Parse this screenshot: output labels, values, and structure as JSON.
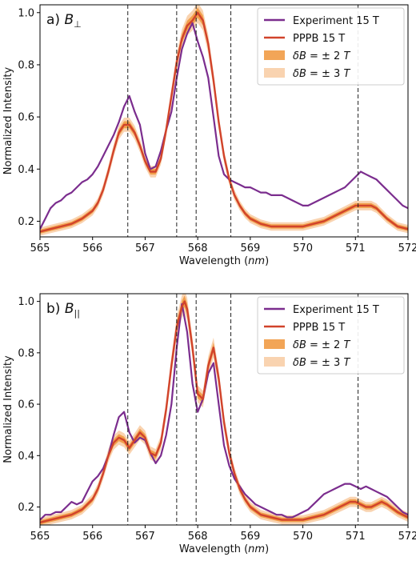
{
  "chart_data": [
    {
      "type": "line",
      "panel_label": "a)",
      "panel_symbol": "B",
      "panel_subscript": "⊥",
      "xlabel_main": "Wavelength (",
      "xlabel_unit": "nm",
      "xlabel_end": ")",
      "ylabel": "Normalized Intensity",
      "xlim": [
        565,
        572
      ],
      "ylim": [
        0.14,
        1.03
      ],
      "xticks": [
        "565",
        "566",
        "567",
        "568",
        "569",
        "570",
        "571",
        "572"
      ],
      "yticks": [
        "0.2",
        "0.4",
        "0.6",
        "0.8",
        "1.0"
      ],
      "vlines": [
        566.67,
        567.6,
        567.97,
        568.63,
        571.05
      ],
      "legend_position": "top-right",
      "legend": [
        {
          "label": "Experiment 15 T"
        },
        {
          "label": "PPPB 15 T"
        },
        {
          "label_main": "δB",
          "label_rest": " = ± 2 ",
          "label_unit": "T"
        },
        {
          "label_main": "δB",
          "label_rest": " = ± 3 ",
          "label_unit": "T"
        }
      ],
      "series": [
        {
          "name": "Experiment 15 T",
          "color": "#7b2d8e",
          "x": [
            565.0,
            565.1,
            565.2,
            565.3,
            565.4,
            565.5,
            565.6,
            565.7,
            565.8,
            565.9,
            566.0,
            566.1,
            566.2,
            566.3,
            566.4,
            566.5,
            566.6,
            566.7,
            566.8,
            566.9,
            567.0,
            567.1,
            567.2,
            567.3,
            567.4,
            567.5,
            567.6,
            567.7,
            567.8,
            567.9,
            568.0,
            568.1,
            568.2,
            568.3,
            568.4,
            568.5,
            568.6,
            568.7,
            568.8,
            568.9,
            569.0,
            569.1,
            569.2,
            569.3,
            569.4,
            569.5,
            569.6,
            569.7,
            569.8,
            569.9,
            570.0,
            570.1,
            570.2,
            570.3,
            570.4,
            570.5,
            570.6,
            570.7,
            570.8,
            570.9,
            571.0,
            571.1,
            571.2,
            571.3,
            571.4,
            571.5,
            571.6,
            571.7,
            571.8,
            571.9,
            572.0
          ],
          "y": [
            0.17,
            0.21,
            0.25,
            0.27,
            0.28,
            0.3,
            0.31,
            0.33,
            0.35,
            0.36,
            0.38,
            0.41,
            0.45,
            0.49,
            0.53,
            0.58,
            0.64,
            0.68,
            0.62,
            0.57,
            0.46,
            0.4,
            0.41,
            0.47,
            0.55,
            0.62,
            0.75,
            0.86,
            0.92,
            0.96,
            0.89,
            0.83,
            0.75,
            0.6,
            0.45,
            0.38,
            0.36,
            0.35,
            0.34,
            0.33,
            0.33,
            0.32,
            0.31,
            0.31,
            0.3,
            0.3,
            0.3,
            0.29,
            0.28,
            0.27,
            0.26,
            0.26,
            0.27,
            0.28,
            0.29,
            0.3,
            0.31,
            0.32,
            0.33,
            0.35,
            0.37,
            0.39,
            0.38,
            0.37,
            0.36,
            0.34,
            0.32,
            0.3,
            0.28,
            0.26,
            0.25
          ]
        },
        {
          "name": "PPPB 15 T",
          "color": "#d1432b",
          "x": [
            565.0,
            565.2,
            565.4,
            565.6,
            565.8,
            566.0,
            566.1,
            566.2,
            566.3,
            566.4,
            566.5,
            566.6,
            566.7,
            566.8,
            566.9,
            567.0,
            567.1,
            567.2,
            567.3,
            567.4,
            567.5,
            567.6,
            567.7,
            567.8,
            567.9,
            568.0,
            568.1,
            568.2,
            568.3,
            568.4,
            568.5,
            568.6,
            568.7,
            568.8,
            568.9,
            569.0,
            569.2,
            569.4,
            569.6,
            569.8,
            570.0,
            570.2,
            570.4,
            570.6,
            570.8,
            570.9,
            571.0,
            571.1,
            571.2,
            571.3,
            571.4,
            571.5,
            571.6,
            571.8,
            572.0
          ],
          "y": [
            0.16,
            0.17,
            0.18,
            0.19,
            0.21,
            0.24,
            0.27,
            0.32,
            0.39,
            0.47,
            0.54,
            0.57,
            0.57,
            0.54,
            0.49,
            0.43,
            0.39,
            0.39,
            0.44,
            0.55,
            0.68,
            0.81,
            0.9,
            0.95,
            0.97,
            1.0,
            0.97,
            0.88,
            0.74,
            0.58,
            0.45,
            0.36,
            0.3,
            0.26,
            0.23,
            0.21,
            0.19,
            0.18,
            0.18,
            0.18,
            0.18,
            0.19,
            0.2,
            0.22,
            0.24,
            0.25,
            0.26,
            0.26,
            0.26,
            0.26,
            0.25,
            0.23,
            0.21,
            0.18,
            0.17
          ]
        }
      ],
      "bands": [
        {
          "name": "δB = ± 2 T",
          "color": "#f0953a",
          "opacity": 0.85,
          "width": 0.014
        },
        {
          "name": "δB = ± 3 T",
          "color": "#f7c08e",
          "opacity": 0.7,
          "width": 0.028
        }
      ]
    },
    {
      "type": "line",
      "panel_label": "b)",
      "panel_symbol": "B",
      "panel_subscript": "||",
      "xlabel_main": "Wavelength (",
      "xlabel_unit": "nm",
      "xlabel_end": ")",
      "ylabel": "Normalized Intensity",
      "xlim": [
        565,
        572
      ],
      "ylim": [
        0.13,
        1.03
      ],
      "xticks": [
        "565",
        "566",
        "567",
        "568",
        "569",
        "570",
        "571",
        "572"
      ],
      "yticks": [
        "0.2",
        "0.4",
        "0.6",
        "0.8",
        "1.0"
      ],
      "vlines": [
        566.67,
        567.6,
        567.97,
        568.63,
        571.05
      ],
      "legend_position": "top-right",
      "legend": [
        {
          "label": "Experiment 15 T"
        },
        {
          "label": "PPPB 15 T"
        },
        {
          "label_main": "δB",
          "label_rest": " = ± 2 ",
          "label_unit": "T"
        },
        {
          "label_main": "δB",
          "label_rest": " = ± 3 ",
          "label_unit": "T"
        }
      ],
      "series": [
        {
          "name": "Experiment 15 T",
          "color": "#7b2d8e",
          "x": [
            565.0,
            565.1,
            565.2,
            565.3,
            565.4,
            565.5,
            565.6,
            565.7,
            565.8,
            565.9,
            566.0,
            566.1,
            566.2,
            566.3,
            566.4,
            566.5,
            566.6,
            566.7,
            566.8,
            566.9,
            567.0,
            567.1,
            567.2,
            567.3,
            567.4,
            567.5,
            567.6,
            567.7,
            567.8,
            567.9,
            568.0,
            568.1,
            568.2,
            568.3,
            568.4,
            568.5,
            568.6,
            568.7,
            568.8,
            568.9,
            569.0,
            569.1,
            569.2,
            569.3,
            569.4,
            569.5,
            569.6,
            569.7,
            569.8,
            569.9,
            570.0,
            570.1,
            570.2,
            570.3,
            570.4,
            570.5,
            570.6,
            570.7,
            570.8,
            570.9,
            571.0,
            571.1,
            571.2,
            571.3,
            571.4,
            571.5,
            571.6,
            571.7,
            571.8,
            571.9,
            572.0
          ],
          "y": [
            0.15,
            0.17,
            0.17,
            0.18,
            0.18,
            0.2,
            0.22,
            0.21,
            0.22,
            0.26,
            0.3,
            0.32,
            0.35,
            0.4,
            0.48,
            0.55,
            0.57,
            0.49,
            0.45,
            0.47,
            0.46,
            0.41,
            0.37,
            0.4,
            0.48,
            0.6,
            0.82,
            0.99,
            0.88,
            0.68,
            0.57,
            0.62,
            0.72,
            0.76,
            0.6,
            0.44,
            0.36,
            0.31,
            0.28,
            0.25,
            0.23,
            0.21,
            0.2,
            0.19,
            0.18,
            0.17,
            0.17,
            0.16,
            0.16,
            0.17,
            0.18,
            0.19,
            0.21,
            0.23,
            0.25,
            0.26,
            0.27,
            0.28,
            0.29,
            0.29,
            0.28,
            0.27,
            0.28,
            0.27,
            0.26,
            0.25,
            0.24,
            0.22,
            0.2,
            0.18,
            0.17
          ]
        },
        {
          "name": "PPPB 15 T",
          "color": "#d1432b",
          "x": [
            565.0,
            565.2,
            565.4,
            565.6,
            565.8,
            566.0,
            566.1,
            566.2,
            566.3,
            566.4,
            566.5,
            566.6,
            566.7,
            566.8,
            566.9,
            567.0,
            567.1,
            567.2,
            567.3,
            567.4,
            567.5,
            567.6,
            567.7,
            567.75,
            567.8,
            567.9,
            568.0,
            568.1,
            568.2,
            568.3,
            568.4,
            568.5,
            568.6,
            568.7,
            568.8,
            568.9,
            569.0,
            569.2,
            569.4,
            569.6,
            569.8,
            570.0,
            570.2,
            570.4,
            570.6,
            570.8,
            570.9,
            571.0,
            571.1,
            571.2,
            571.3,
            571.4,
            571.5,
            571.6,
            571.8,
            572.0
          ],
          "y": [
            0.14,
            0.15,
            0.16,
            0.17,
            0.19,
            0.23,
            0.27,
            0.33,
            0.4,
            0.45,
            0.47,
            0.46,
            0.43,
            0.46,
            0.49,
            0.47,
            0.41,
            0.4,
            0.45,
            0.58,
            0.75,
            0.9,
            0.98,
            1.0,
            0.97,
            0.82,
            0.64,
            0.62,
            0.75,
            0.82,
            0.7,
            0.53,
            0.41,
            0.33,
            0.27,
            0.23,
            0.2,
            0.17,
            0.16,
            0.15,
            0.15,
            0.15,
            0.16,
            0.17,
            0.19,
            0.21,
            0.22,
            0.22,
            0.21,
            0.2,
            0.2,
            0.21,
            0.22,
            0.21,
            0.18,
            0.16
          ]
        }
      ],
      "bands": [
        {
          "name": "δB = ± 2 T",
          "color": "#f0953a",
          "opacity": 0.85,
          "width": 0.016
        },
        {
          "name": "δB = ± 3 T",
          "color": "#f7c08e",
          "opacity": 0.7,
          "width": 0.032
        }
      ]
    }
  ]
}
